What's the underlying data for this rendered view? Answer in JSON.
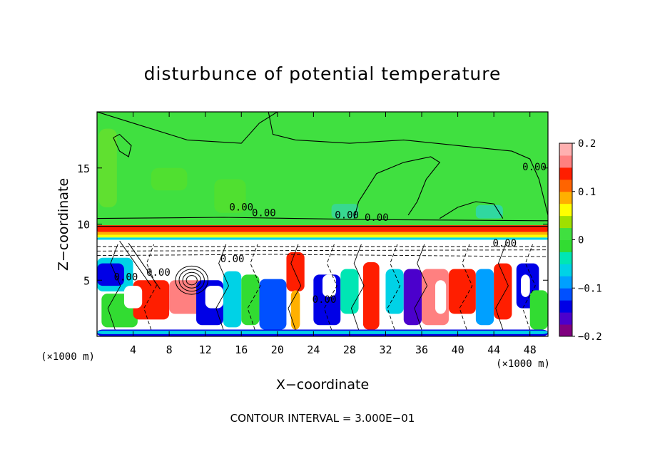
{
  "chart_data": {
    "type": "heatmap",
    "title": "disturbunce of potential temperature",
    "xlabel": "X−coordinate",
    "ylabel": "Z−coordinate",
    "x_unit_label": "(×1000 m)",
    "y_unit_label": "(×1000 m)",
    "footer": "CONTOUR INTERVAL = 3.000E−01",
    "xlim": [
      0,
      50
    ],
    "ylim": [
      0,
      20
    ],
    "x_ticks": [
      4,
      8,
      12,
      16,
      20,
      24,
      28,
      32,
      36,
      40,
      44,
      48
    ],
    "y_ticks": [
      5,
      10,
      15
    ],
    "colorbar": {
      "min": -0.2,
      "max": 0.2,
      "ticks": [
        "0.2",
        "0.1",
        "0",
        "−0.1",
        "−0.2"
      ],
      "tick_values": [
        0.2,
        0.1,
        0,
        -0.1,
        -0.2
      ],
      "colors": [
        "#800080",
        "#4b00cc",
        "#0000e6",
        "#0050ff",
        "#00a0ff",
        "#00d2e6",
        "#00e6b4",
        "#32dc32",
        "#40e040",
        "#a0e000",
        "#ffff00",
        "#ffb000",
        "#ff6400",
        "#ff1e00",
        "#ff8080",
        "#ffb0b0"
      ]
    },
    "contour_labels": [
      {
        "text": "0.00",
        "x": 16,
        "z": 11.2
      },
      {
        "text": "0.00",
        "x": 27.7,
        "z": 10.5
      },
      {
        "text": "0.00",
        "x": 31,
        "z": 10.3
      },
      {
        "text": "0.00",
        "x": 18.5,
        "z": 10.7
      },
      {
        "text": "0.00",
        "x": 48.5,
        "z": 14.8
      },
      {
        "text": "0.00",
        "x": 45.2,
        "z": 8.0
      },
      {
        "text": "0.00",
        "x": 15,
        "z": 6.6
      },
      {
        "text": "0.00",
        "x": 3.2,
        "z": 5.0
      },
      {
        "text": "0.00",
        "x": 6.8,
        "z": 5.4
      },
      {
        "text": "0.00",
        "x": 25.2,
        "z": 3.0
      }
    ]
  }
}
